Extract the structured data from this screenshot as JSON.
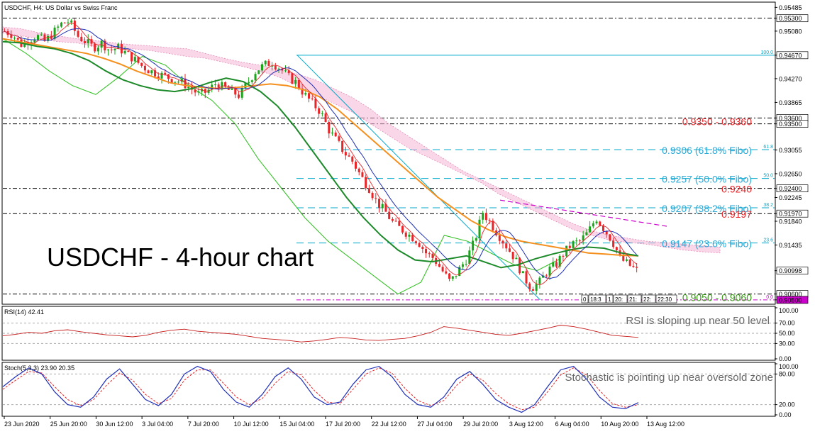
{
  "chart_data": {
    "type": "candlestick",
    "symbol_header": "USDCHF, H4:  US Dollar vs Swiss Franc",
    "title": "USDCHF - 4-hour chart",
    "x_tick_labels": [
      "23 Jun 2020",
      "25 Jun 20:00",
      "30 Jun 12:00",
      "3 Jul 04:00",
      "7 Jul 20:00",
      "10 Jul 12:00",
      "15 Jul 04:00",
      "17 Jul 20:00",
      "22 Jul 12:00",
      "27 Jul 04:00",
      "29 Jul 20:00",
      "3 Aug 12:00",
      "6 Aug 04:00",
      "10 Aug 20:00",
      "13 Aug 12:00"
    ],
    "price_axis": {
      "ylim": [
        0.9045,
        0.9555
      ],
      "tick_labels": [
        "0.95485",
        "0.95300",
        "0.95080",
        "0.94670",
        "0.94270",
        "0.93865",
        "0.93600",
        "0.93500",
        "0.93055",
        "0.92650",
        "0.92400",
        "0.92245",
        "0.91970",
        "0.91840",
        "0.91435",
        "0.90998",
        "0.90600",
        "0.90500"
      ],
      "tick_values": [
        0.95485,
        0.953,
        0.9508,
        0.9467,
        0.9427,
        0.93865,
        0.936,
        0.935,
        0.93055,
        0.9265,
        0.924,
        0.92245,
        0.9197,
        0.9184,
        0.91435,
        0.90998,
        0.906,
        0.905
      ],
      "highlight_labels": [
        "0.95300",
        "0.94670",
        "0.93600",
        "0.93500",
        "0.92400",
        "0.91970",
        "0.90998",
        "0.90600",
        "0.90500"
      ]
    },
    "horizontal_levels": [
      {
        "value": 0.953,
        "style": "dash-dot",
        "color": "#000000"
      },
      {
        "value": 0.9467,
        "style": "solid",
        "color": "#00aacc",
        "label": "100.0"
      },
      {
        "value": 0.936,
        "style": "dash-dot",
        "color": "#000000"
      },
      {
        "value": 0.935,
        "style": "dash-dot",
        "color": "#000000"
      },
      {
        "value": 0.9306,
        "style": "dashed",
        "color": "#00aacc",
        "label": "61.8"
      },
      {
        "value": 0.9257,
        "style": "dashed",
        "color": "#00aacc",
        "label": "50.0"
      },
      {
        "value": 0.924,
        "style": "dash-dot",
        "color": "#000000"
      },
      {
        "value": 0.9207,
        "style": "dashed",
        "color": "#00aacc",
        "label": "38.2"
      },
      {
        "value": 0.9197,
        "style": "dash-dot",
        "color": "#000000"
      },
      {
        "value": 0.9147,
        "style": "dashed",
        "color": "#00aacc",
        "label": "23.6"
      },
      {
        "value": 0.906,
        "style": "dash-dot",
        "color": "#000000"
      },
      {
        "value": 0.905,
        "style": "dash-dot",
        "color": "#cc00cc",
        "label": "0.0"
      }
    ],
    "annotations": [
      {
        "text": "0.9350 - 0.9360",
        "value": 0.9355,
        "color": "#e8262a"
      },
      {
        "text": "0.9306 (61.8% Fibo)",
        "value": 0.9306,
        "color": "#29a8d8"
      },
      {
        "text": "0.9257 (50.0% Fibo)",
        "value": 0.9257,
        "color": "#29a8d8"
      },
      {
        "text": "0.9240",
        "value": 0.924,
        "color": "#e8262a"
      },
      {
        "text": "0.9207 (38.2% Fibo)",
        "value": 0.9207,
        "color": "#29a8d8"
      },
      {
        "text": "0.9197",
        "value": 0.9197,
        "color": "#e8262a"
      },
      {
        "text": "0.9147 (23.6% Fibo)",
        "value": 0.9147,
        "color": "#29a8d8"
      },
      {
        "text": "0.9050 - 0.9060",
        "value": 0.9055,
        "color": "#3a9a1a"
      }
    ],
    "time_scale_labels": [
      "0",
      "18:3",
      "1",
      "20:",
      "21:",
      "22:",
      "22:30"
    ],
    "price_path": [
      0.9508,
      0.9502,
      0.9485,
      0.9493,
      0.95,
      0.949,
      0.9505,
      0.952,
      0.9525,
      0.95,
      0.949,
      0.948,
      0.9488,
      0.9475,
      0.948,
      0.947,
      0.946,
      0.9448,
      0.944,
      0.9435,
      0.943,
      0.9425,
      0.942,
      0.941,
      0.94,
      0.9405,
      0.9418,
      0.9412,
      0.9405,
      0.9398,
      0.942,
      0.944,
      0.945,
      0.9455,
      0.9445,
      0.943,
      0.942,
      0.94,
      0.9385,
      0.937,
      0.934,
      0.932,
      0.93,
      0.9285,
      0.926,
      0.924,
      0.9215,
      0.92,
      0.918,
      0.917,
      0.916,
      0.915,
      0.913,
      0.912,
      0.91,
      0.908,
      0.91,
      0.912,
      0.915,
      0.92,
      0.918,
      0.916,
      0.914,
      0.912,
      0.909,
      0.907,
      0.908,
      0.91,
      0.911,
      0.913,
      0.9145,
      0.915,
      0.9165,
      0.919,
      0.917,
      0.915,
      0.912,
      0.911,
      0.91
    ],
    "ichimoku": {
      "span_a": [
        0.9505,
        0.95,
        0.9495,
        0.949,
        0.9488,
        0.9482,
        0.948,
        0.9478,
        0.9475,
        0.947,
        0.9465,
        0.9462,
        0.9455,
        0.9448,
        0.944,
        0.943,
        0.9415,
        0.94,
        0.9385,
        0.937,
        0.935,
        0.933,
        0.931,
        0.9295,
        0.928,
        0.9265,
        0.925,
        0.923,
        0.9215,
        0.92,
        0.9185,
        0.917,
        0.916,
        0.9152,
        0.9148,
        0.9145,
        0.914,
        0.9135,
        0.9132,
        0.913
      ],
      "span_b": [
        0.9515,
        0.9512,
        0.9505,
        0.95,
        0.9495,
        0.9492,
        0.9488,
        0.9485,
        0.9483,
        0.948,
        0.9478,
        0.947,
        0.9462,
        0.9455,
        0.945,
        0.9442,
        0.9435,
        0.9425,
        0.941,
        0.9395,
        0.9375,
        0.935,
        0.933,
        0.931,
        0.929,
        0.927,
        0.9255,
        0.924,
        0.9225,
        0.921,
        0.9195,
        0.918,
        0.9168,
        0.916,
        0.9155,
        0.915,
        0.9148,
        0.9145,
        0.9142,
        0.914
      ],
      "chikou": [
        0.9495,
        0.947,
        0.944,
        0.9415,
        0.94,
        0.943,
        0.9465,
        0.945,
        0.9415,
        0.939,
        0.935,
        0.929,
        0.924,
        0.919,
        0.915,
        0.912,
        0.909,
        0.906,
        0.908,
        0.916,
        0.915,
        0.913,
        0.911,
        0.91,
        0.912
      ]
    },
    "ma_slow": [
      0.9495,
      0.949,
      0.9485,
      0.948,
      0.9475,
      0.947,
      0.9462,
      0.9452,
      0.944,
      0.943,
      0.942,
      0.9415,
      0.9412,
      0.941,
      0.9412,
      0.9415,
      0.9418,
      0.9415,
      0.9408,
      0.9395,
      0.9375,
      0.935,
      0.9325,
      0.93,
      0.9275,
      0.925,
      0.9225,
      0.9205,
      0.9185,
      0.917,
      0.9158,
      0.915,
      0.9145,
      0.914,
      0.9135,
      0.913,
      0.9128,
      0.9126,
      0.9125
    ],
    "ma_fast": [
      0.949,
      0.9488,
      0.9482,
      0.9478,
      0.947,
      0.9458,
      0.944,
      0.9425,
      0.9415,
      0.9408,
      0.9405,
      0.941,
      0.942,
      0.9428,
      0.9422,
      0.9405,
      0.938,
      0.9345,
      0.9305,
      0.9265,
      0.9225,
      0.919,
      0.916,
      0.9135,
      0.9118,
      0.9115,
      0.912,
      0.9125,
      0.9115,
      0.9105,
      0.911,
      0.912,
      0.9128,
      0.9135,
      0.914,
      0.9138,
      0.913,
      0.9125
    ],
    "fib_trendline": {
      "from": [
        0.0,
        0.9467
      ],
      "to": [
        0.54,
        0.905
      ]
    },
    "resistance_trendline": {
      "from": [
        0.58,
        0.922
      ],
      "to": [
        0.8,
        0.919
      ]
    },
    "rsi": {
      "label": "RSI(14) 42.41",
      "ylim": [
        0,
        100
      ],
      "tick_labels": [
        "100.00",
        "70.00",
        "50.00",
        "30.00",
        "0.00"
      ],
      "tick_values": [
        100,
        70,
        50,
        30,
        0
      ],
      "note": "RSI is sloping up near 50 level",
      "values": [
        45,
        48,
        52,
        50,
        55,
        57,
        53,
        50,
        47,
        45,
        43,
        46,
        52,
        56,
        58,
        54,
        52,
        50,
        48,
        44,
        40,
        38,
        36,
        33,
        35,
        38,
        42,
        40,
        37,
        36,
        38,
        40,
        45,
        52,
        63,
        60,
        56,
        52,
        48,
        46,
        50,
        55,
        60,
        66,
        63,
        58,
        52,
        46,
        44,
        42
      ]
    },
    "stochastic": {
      "label": "Stoch(5,3,3) 23.90 20.35",
      "ylim": [
        0,
        100
      ],
      "tick_labels": [
        "100.00",
        "80.00",
        "20.00",
        "0.00"
      ],
      "tick_values": [
        100,
        80,
        20,
        0
      ],
      "note": "Stochastic is pointing up near oversold zone",
      "k_values": [
        55,
        75,
        92,
        80,
        45,
        20,
        15,
        35,
        70,
        90,
        60,
        30,
        18,
        40,
        80,
        95,
        85,
        50,
        25,
        15,
        40,
        75,
        92,
        70,
        35,
        20,
        25,
        60,
        88,
        95,
        75,
        40,
        20,
        15,
        35,
        70,
        85,
        60,
        30,
        15,
        5,
        20,
        55,
        88,
        95,
        70,
        35,
        15,
        12,
        24
      ],
      "d_values": [
        50,
        68,
        85,
        82,
        55,
        30,
        18,
        30,
        58,
        82,
        68,
        40,
        22,
        32,
        68,
        88,
        88,
        62,
        35,
        20,
        32,
        62,
        85,
        78,
        48,
        25,
        22,
        50,
        80,
        92,
        82,
        52,
        28,
        18,
        28,
        58,
        80,
        68,
        42,
        22,
        10,
        15,
        45,
        78,
        92,
        78,
        48,
        22,
        15,
        20
      ]
    }
  }
}
